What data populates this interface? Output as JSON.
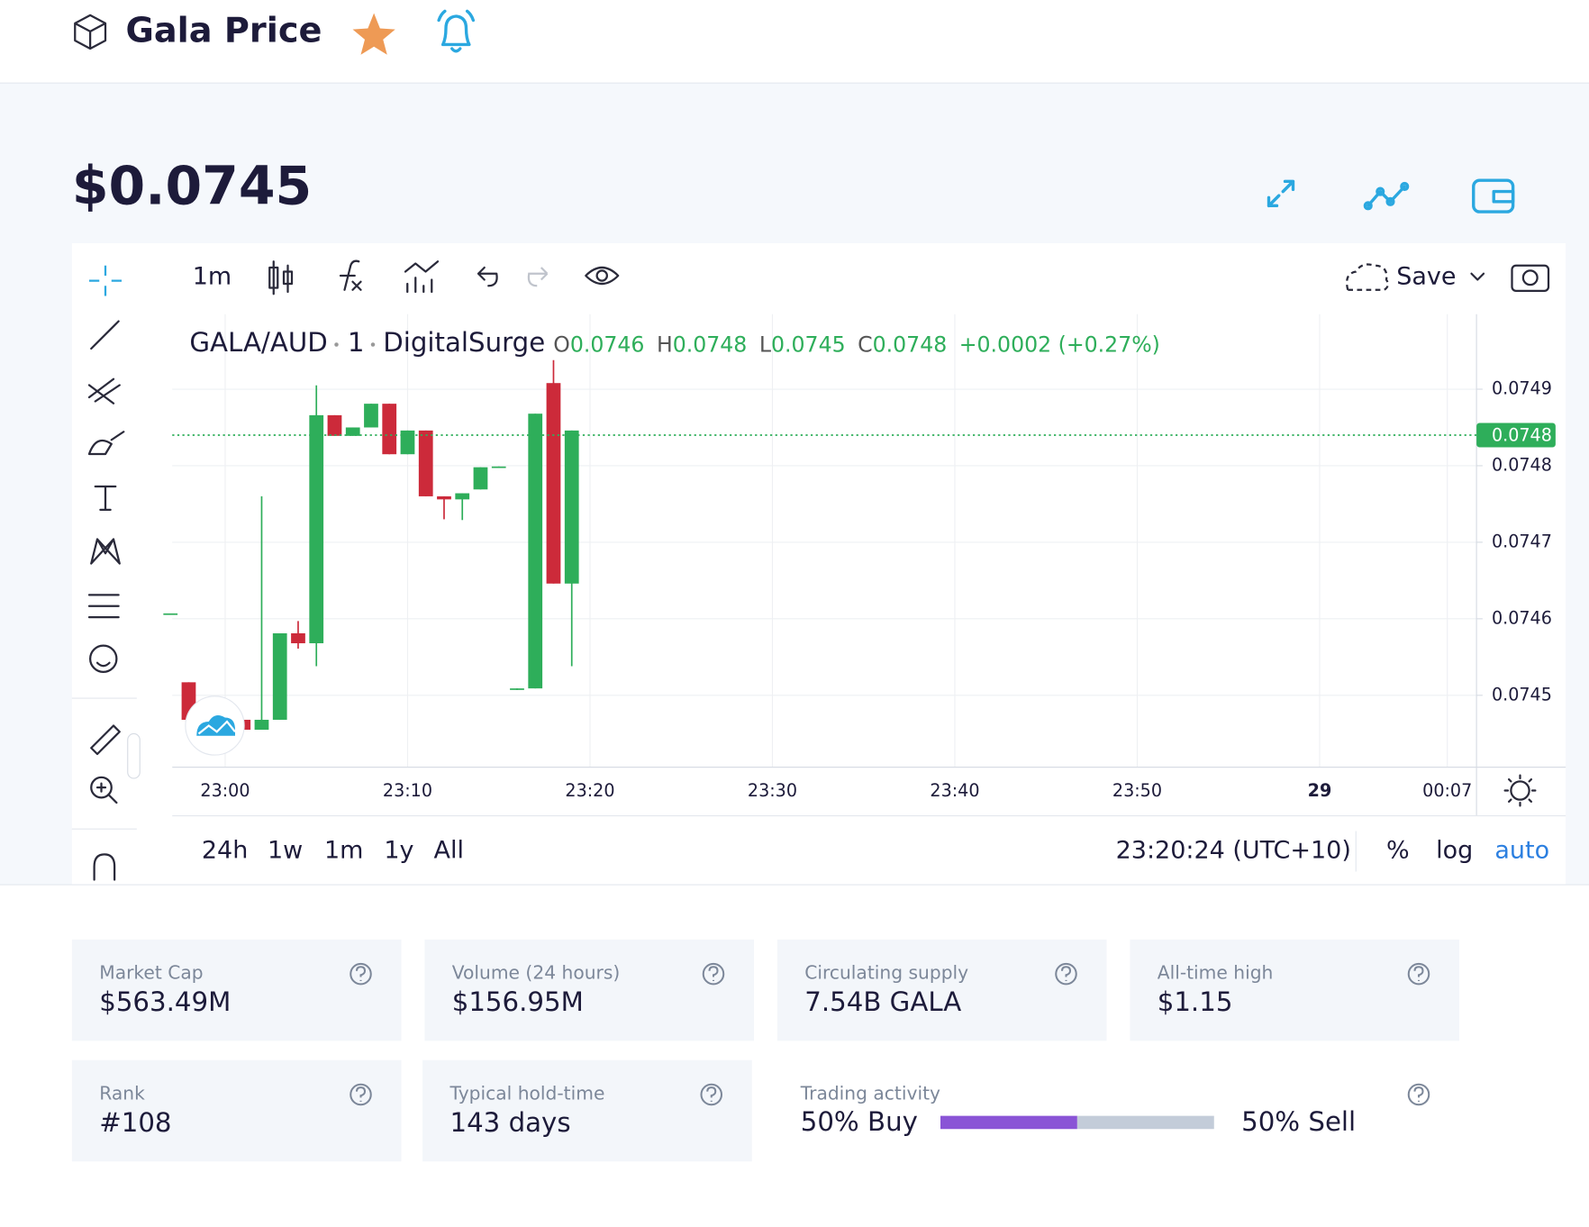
{
  "header": {
    "title": "Gala Price"
  },
  "price": "$0.0745",
  "toolbar": {
    "interval": "1m",
    "save": "Save"
  },
  "chart_data": {
    "type": "candlestick",
    "symbol": "GALA/AUD",
    "interval": "1",
    "exchange": "DigitalSurge",
    "legend": [
      {
        "key": "O",
        "value": "0.0746"
      },
      {
        "key": "H",
        "value": "0.0748"
      },
      {
        "key": "L",
        "value": "0.0745"
      },
      {
        "key": "C",
        "value": "0.0748"
      }
    ],
    "change": "+0.0002 (+0.27%)",
    "up_color": "#2eae5a",
    "down_color": "#cc2a3a",
    "x": [
      1377,
      1378,
      1381,
      1382,
      1383,
      1384,
      1385,
      1386,
      1387,
      1388,
      1389,
      1390,
      1391,
      1392,
      1393,
      1394,
      1395,
      1396,
      1397,
      1398,
      1399
    ],
    "open": [
      0.074607,
      0.074517,
      0.074468,
      0.074455,
      0.074468,
      0.074581,
      0.074568,
      0.074866,
      0.074839,
      0.07485,
      0.074881,
      0.074815,
      0.074846,
      0.07476,
      0.074756,
      0.074769,
      0.074797,
      0.074507,
      0.074509,
      0.074908,
      0.074646
    ],
    "high": [
      0.074607,
      0.074517,
      0.074468,
      0.07476,
      0.074581,
      0.074597,
      0.074905,
      0.074866,
      0.07485,
      0.074881,
      0.074881,
      0.074846,
      0.074846,
      0.07476,
      0.074764,
      0.074798,
      0.074799,
      0.074509,
      0.074868,
      0.074938,
      0.074846
    ],
    "low": [
      0.074607,
      0.074468,
      0.074455,
      0.074455,
      0.074468,
      0.074561,
      0.074538,
      0.074839,
      0.074839,
      0.07485,
      0.074815,
      0.074815,
      0.07476,
      0.07473,
      0.074729,
      0.074769,
      0.074797,
      0.074507,
      0.074509,
      0.074646,
      0.074538
    ],
    "close": [
      0.074607,
      0.074468,
      0.074455,
      0.074468,
      0.074581,
      0.074568,
      0.074866,
      0.074839,
      0.07485,
      0.074881,
      0.074815,
      0.074846,
      0.07476,
      0.074756,
      0.074764,
      0.074798,
      0.074799,
      0.074509,
      0.074868,
      0.074646,
      0.074846
    ],
    "xlim": [
      1377.1,
      1448.6
    ],
    "xticks": [
      {
        "value": 1380,
        "label": "23:00"
      },
      {
        "value": 1390,
        "label": "23:10"
      },
      {
        "value": 1400,
        "label": "23:20"
      },
      {
        "value": 1410,
        "label": "23:30"
      },
      {
        "value": 1420,
        "label": "23:40"
      },
      {
        "value": 1430,
        "label": "23:50"
      },
      {
        "value": 1440,
        "label": "29"
      },
      {
        "value": 1447,
        "label": "00:07"
      }
    ],
    "ylim": [
      0.07441,
      0.075
    ],
    "yticks": [
      0.0749,
      0.0748,
      0.0747,
      0.0746,
      0.0745
    ],
    "grid": true,
    "price_line": {
      "value": 0.07484,
      "label": "0.0748"
    }
  },
  "ranges": [
    "24h",
    "1w",
    "1m",
    "1y",
    "All"
  ],
  "clock": "23:20:24 (UTC+10)",
  "scale_options": [
    "%",
    "log",
    "auto"
  ],
  "stats": [
    {
      "label": "Market Cap",
      "value": "$563.49M"
    },
    {
      "label": "Volume (24 hours)",
      "value": "$156.95M"
    },
    {
      "label": "Circulating supply",
      "value": "7.54B GALA"
    },
    {
      "label": "All-time high",
      "value": "$1.15"
    },
    {
      "label": "Rank",
      "value": "#108"
    },
    {
      "label": "Typical hold-time",
      "value": "143 days"
    }
  ],
  "trading_activity": {
    "title": "Trading activity",
    "buy": {
      "value": 50,
      "label": "50% Buy"
    },
    "sell": {
      "value": 50,
      "label": "50% Sell"
    }
  }
}
